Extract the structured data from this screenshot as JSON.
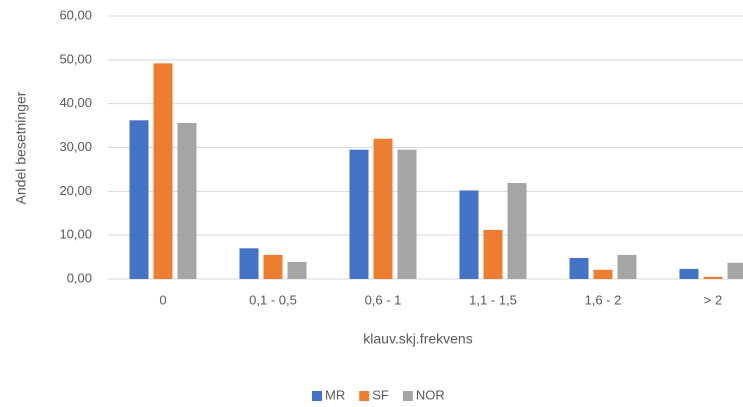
{
  "chart_data": {
    "type": "bar",
    "x_label": "klauv.skj.frekvens",
    "y_label": "Andel besetninger",
    "categories": [
      "0",
      "0,1 - 0,5",
      "0,6 - 1",
      "1,1 - 1,5",
      "1,6 - 2",
      "> 2"
    ],
    "series": [
      {
        "name": "MR",
        "color": "#4472c4",
        "values": [
          36.2,
          7.0,
          29.5,
          20.2,
          4.8,
          2.3
        ]
      },
      {
        "name": "SF",
        "color": "#ed7d31",
        "values": [
          49.2,
          5.5,
          32.0,
          11.2,
          2.1,
          0.5
        ]
      },
      {
        "name": "NOR",
        "color": "#a5a5a5",
        "values": [
          35.6,
          3.9,
          29.5,
          21.9,
          5.5,
          3.7
        ]
      }
    ],
    "ylim": [
      0,
      60
    ],
    "yticks": [
      {
        "value": 0,
        "label": "0,00"
      },
      {
        "value": 10,
        "label": "10,00"
      },
      {
        "value": 20,
        "label": "20,00"
      },
      {
        "value": 30,
        "label": "30,00"
      },
      {
        "value": 40,
        "label": "40,00"
      },
      {
        "value": 50,
        "label": "50,00"
      },
      {
        "value": 60,
        "label": "60,00"
      }
    ],
    "grid": true,
    "legend": "bottom"
  }
}
